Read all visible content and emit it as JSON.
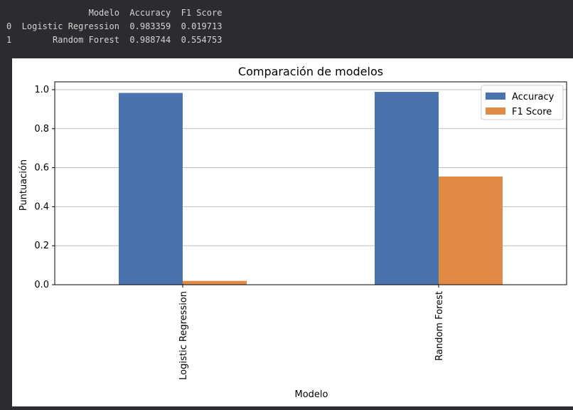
{
  "dataframe": {
    "columns": [
      "Modelo",
      "Accuracy",
      "F1 Score"
    ],
    "rows": [
      {
        "index": "0",
        "Modelo": "Logistic Regression",
        "Accuracy": "0.983359",
        "F1 Score": "0.019713"
      },
      {
        "index": "1",
        "Modelo": "Random Forest",
        "Accuracy": "0.988744",
        "F1 Score": "0.554753"
      }
    ]
  },
  "chart_data": {
    "type": "bar",
    "title": "Comparación de modelos",
    "xlabel": "Modelo",
    "ylabel": "Puntuación",
    "categories": [
      "Logistic Regression",
      "Random Forest"
    ],
    "series": [
      {
        "name": "Accuracy",
        "values": [
          0.983359,
          0.988744
        ],
        "color": "#4a73ad"
      },
      {
        "name": "F1 Score",
        "values": [
          0.019713,
          0.554753
        ],
        "color": "#e18a45"
      }
    ],
    "ylim": [
      0,
      1.04
    ],
    "yticks": [
      "0.0",
      "0.2",
      "0.4",
      "0.6",
      "0.8",
      "1.0"
    ],
    "grid": "y",
    "legend": "top-right"
  }
}
